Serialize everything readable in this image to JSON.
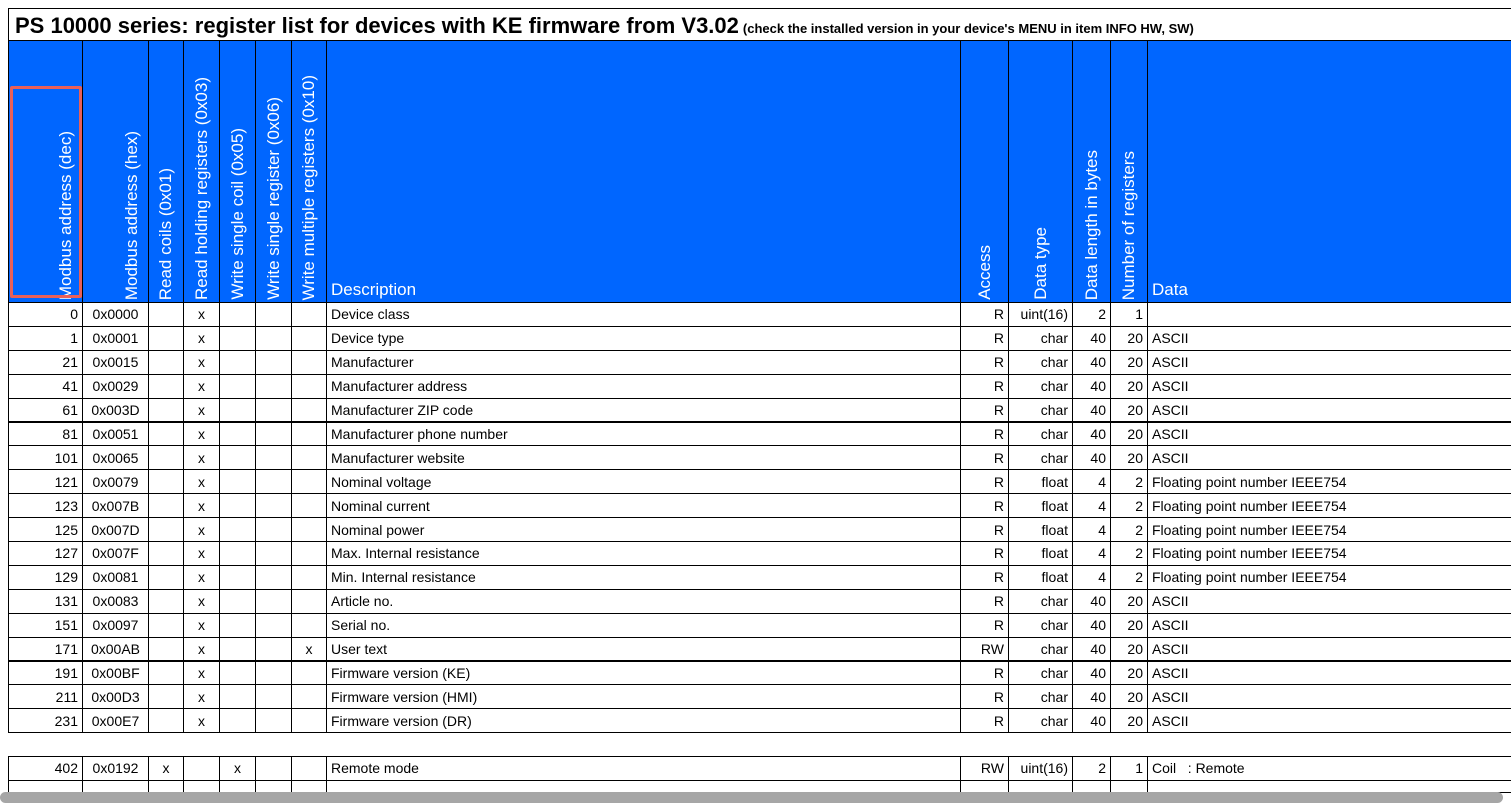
{
  "header": {
    "title": "PS 10000 series: register list for devices with KE firmware from V3.02",
    "note": "(check the installed version in your device's MENU in item INFO HW, SW)"
  },
  "table": {
    "columns": [
      "Modbus address (dec)",
      "Modbus address (hex)",
      "Read coils (0x01)",
      "Read holding registers (0x03)",
      "Write single coil (0x05)",
      "Write single register (0x06)",
      "Write multiple registers (0x10)",
      "Description",
      "Access",
      "Data type",
      "Data length in bytes",
      "Number of registers",
      "Data"
    ],
    "groups": [
      {
        "rows": [
          [
            "0",
            "0x0000",
            null,
            "x",
            null,
            null,
            null,
            "Device class",
            "R",
            "uint(16)",
            "2",
            "1",
            null
          ],
          [
            "1",
            "0x0001",
            null,
            "x",
            null,
            null,
            null,
            "Device type",
            "R",
            "char",
            "40",
            "20",
            "ASCII"
          ],
          [
            "21",
            "0x0015",
            null,
            "x",
            null,
            null,
            null,
            "Manufacturer",
            "R",
            "char",
            "40",
            "20",
            "ASCII"
          ],
          [
            "41",
            "0x0029",
            null,
            "x",
            null,
            null,
            null,
            "Manufacturer address",
            "R",
            "char",
            "40",
            "20",
            "ASCII"
          ],
          [
            "61",
            "0x003D",
            null,
            "x",
            null,
            null,
            null,
            "Manufacturer ZIP code",
            "R",
            "char",
            "40",
            "20",
            "ASCII"
          ],
          [
            "81",
            "0x0051",
            null,
            "x",
            null,
            null,
            null,
            "Manufacturer phone number",
            "R",
            "char",
            "40",
            "20",
            "ASCII"
          ],
          [
            "101",
            "0x0065",
            null,
            "x",
            null,
            null,
            null,
            "Manufacturer website",
            "R",
            "char",
            "40",
            "20",
            "ASCII"
          ],
          [
            "121",
            "0x0079",
            null,
            "x",
            null,
            null,
            null,
            "Nominal voltage",
            "R",
            "float",
            "4",
            "2",
            "Floating point number IEEE754"
          ],
          [
            "123",
            "0x007B",
            null,
            "x",
            null,
            null,
            null,
            "Nominal current",
            "R",
            "float",
            "4",
            "2",
            "Floating point number IEEE754"
          ],
          [
            "125",
            "0x007D",
            null,
            "x",
            null,
            null,
            null,
            "Nominal power",
            "R",
            "float",
            "4",
            "2",
            "Floating point number IEEE754"
          ],
          [
            "127",
            "0x007F",
            null,
            "x",
            null,
            null,
            null,
            "Max. Internal resistance",
            "R",
            "float",
            "4",
            "2",
            "Floating point number IEEE754"
          ],
          [
            "129",
            "0x0081",
            null,
            "x",
            null,
            null,
            null,
            "Min. Internal resistance",
            "R",
            "float",
            "4",
            "2",
            "Floating point number IEEE754"
          ],
          [
            "131",
            "0x0083",
            null,
            "x",
            null,
            null,
            null,
            "Article no.",
            "R",
            "char",
            "40",
            "20",
            "ASCII"
          ],
          [
            "151",
            "0x0097",
            null,
            "x",
            null,
            null,
            null,
            "Serial no.",
            "R",
            "char",
            "40",
            "20",
            "ASCII"
          ],
          [
            "171",
            "0x00AB",
            null,
            "x",
            null,
            null,
            "x",
            "User text",
            "RW",
            "char",
            "40",
            "20",
            "ASCII"
          ],
          [
            "191",
            "0x00BF",
            null,
            "x",
            null,
            null,
            null,
            "Firmware version (KE)",
            "R",
            "char",
            "40",
            "20",
            "ASCII"
          ],
          [
            "211",
            "0x00D3",
            null,
            "x",
            null,
            null,
            null,
            "Firmware version (HMI)",
            "R",
            "char",
            "40",
            "20",
            "ASCII"
          ],
          [
            "231",
            "0x00E7",
            null,
            "x",
            null,
            null,
            null,
            "Firmware version (DR)",
            "R",
            "char",
            "40",
            "20",
            "ASCII"
          ]
        ]
      },
      {
        "rows": [
          [
            "402",
            "0x0192",
            "x",
            null,
            "x",
            null,
            null,
            "Remote mode",
            "RW",
            "uint(16)",
            "2",
            "1",
            "Coil   : Remote"
          ]
        ]
      }
    ]
  }
}
